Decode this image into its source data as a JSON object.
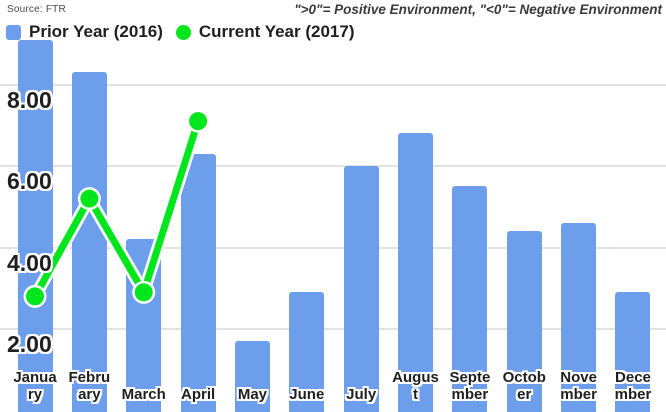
{
  "source_label": "Source: FTR",
  "title": "\">0\"= Positive Environment, \"<0\"= Negative Environment",
  "legend": [
    {
      "label": "Prior Year (2016)",
      "marker": "square-icon",
      "color": "#6d9eeb"
    },
    {
      "label": "Current Year (2017)",
      "marker": "circle-icon",
      "color": "#00e61c"
    }
  ],
  "colors": {
    "bar": "#6d9eeb",
    "line": "#00e61c",
    "line_halo": "#ffffff",
    "gridline": "#e2e2e2",
    "text": "#1f1f1f"
  },
  "chart_data": {
    "type": "bar",
    "title": "\">0\"= Positive Environment, \"<0\"= Negative Environment",
    "xlabel": "",
    "ylabel": "",
    "ylim": [
      0,
      10.1
    ],
    "grid": true,
    "legend_position": "top-left",
    "categories": [
      "January",
      "February",
      "March",
      "April",
      "May",
      "June",
      "July",
      "August",
      "September",
      "October",
      "November",
      "December"
    ],
    "category_label_lines": [
      [
        "Janua",
        "ry"
      ],
      [
        "Febru",
        "ary"
      ],
      [
        "March"
      ],
      [
        "April"
      ],
      [
        "May"
      ],
      [
        "June"
      ],
      [
        "July"
      ],
      [
        "Augus",
        "t"
      ],
      [
        "Septe",
        "mber"
      ],
      [
        "Octob",
        "er"
      ],
      [
        "Nove",
        "mber"
      ],
      [
        "Dece",
        "mber"
      ]
    ],
    "yticks": [
      2,
      4,
      6,
      8
    ],
    "ytick_labels": [
      "2.00",
      "4.00",
      "6.00",
      "8.00"
    ],
    "series": [
      {
        "name": "Prior Year (2016)",
        "type": "bar",
        "color": "#6d9eeb",
        "values": [
          9.1,
          8.3,
          4.2,
          6.3,
          1.7,
          2.9,
          6.0,
          6.8,
          5.5,
          4.4,
          4.6,
          2.9
        ]
      },
      {
        "name": "Current Year (2017)",
        "type": "line",
        "color": "#00e61c",
        "values": [
          2.8,
          5.2,
          2.9,
          7.1,
          null,
          null,
          null,
          null,
          null,
          null,
          null,
          null
        ]
      }
    ]
  }
}
